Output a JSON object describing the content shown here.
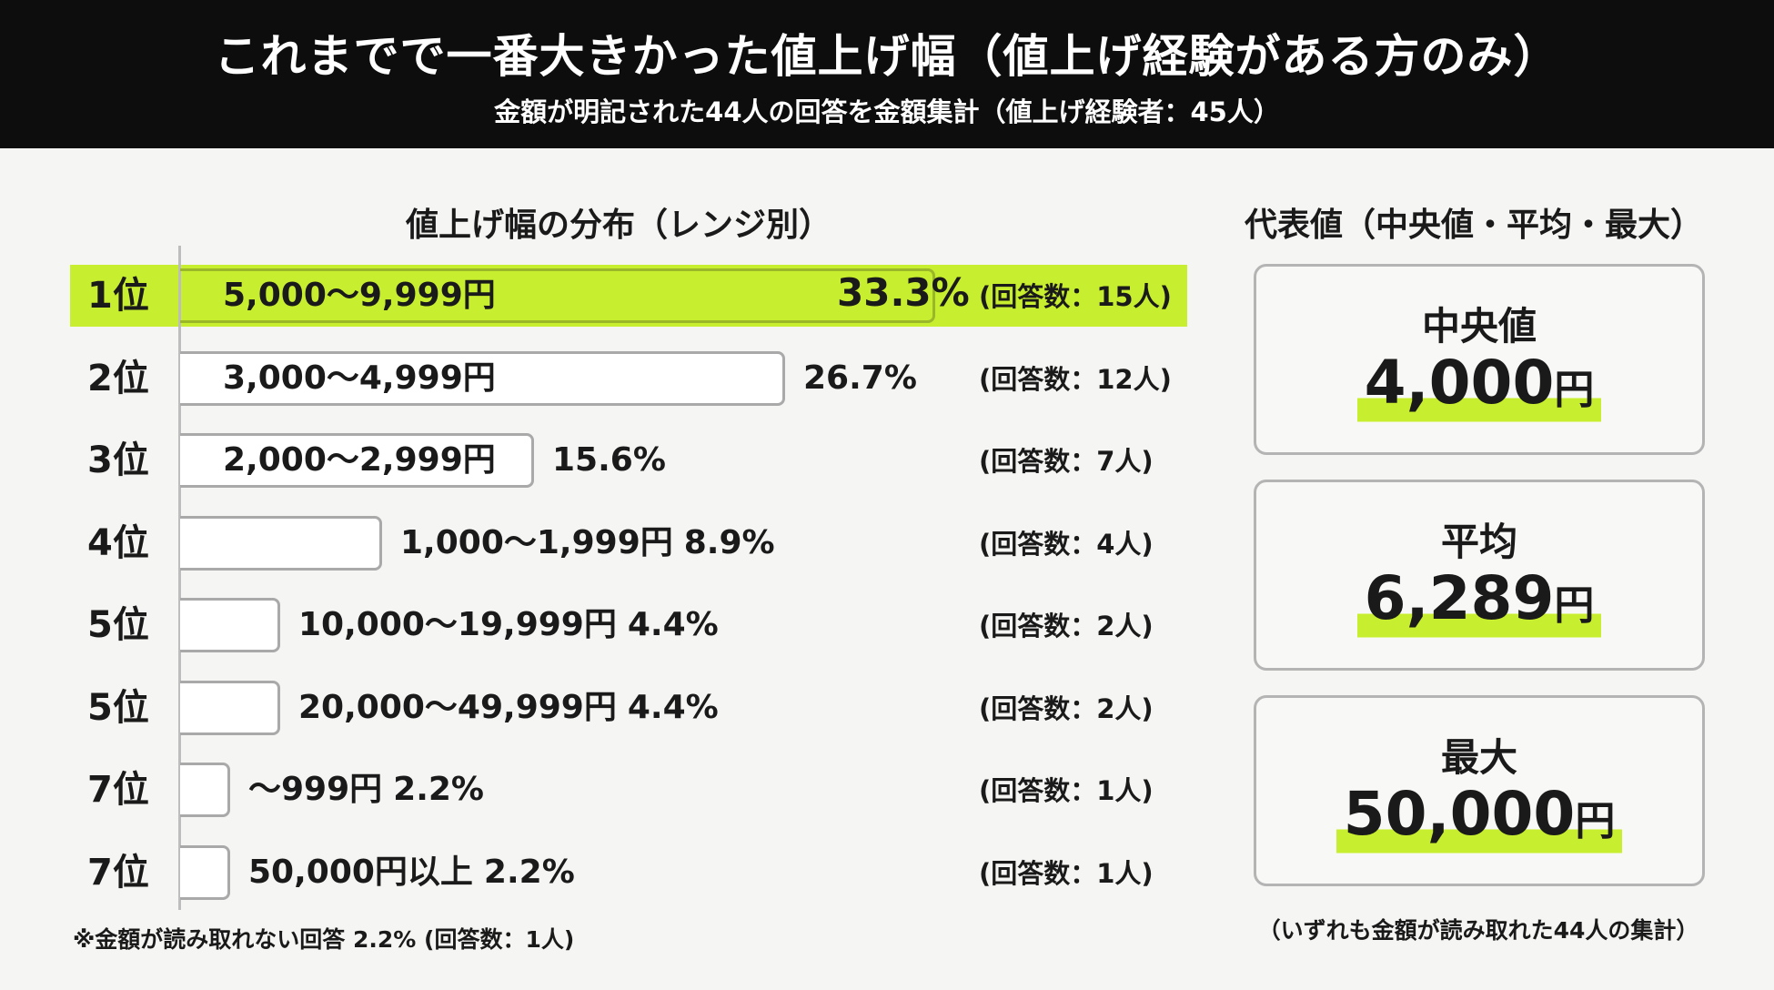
{
  "header": {
    "title": "これまでで一番大きかった値上げ幅（値上げ経験がある方のみ）",
    "subtitle": "金額が明記された44人の回答を金額集計（値上げ経験者：45人）"
  },
  "left_heading": "値上げ幅の分布（レンジ別）",
  "right_heading": "代表値（中央値・平均・最大）",
  "footnote": "※金額が読み取れない回答 2.2% (回答数：1人)",
  "right_footnote": "（いずれも金額が読み取れた44人の集計）",
  "stats": [
    {
      "label": "中央値",
      "value": "4,000",
      "unit": "円"
    },
    {
      "label": "平均",
      "value": "6,289",
      "unit": "円"
    },
    {
      "label": "最大",
      "value": "50,000",
      "unit": "円"
    }
  ],
  "colors": {
    "accent": "#c8ef2f",
    "header_bg": "#0d0d0d",
    "bar_border": "#a9a9a9"
  },
  "chart_data": {
    "type": "bar",
    "orientation": "horizontal",
    "title": "値上げ幅の分布（レンジ別）",
    "ranks": [
      "1位",
      "2位",
      "3位",
      "4位",
      "5位",
      "5位",
      "7位",
      "7位"
    ],
    "categories": [
      "5,000〜9,999円",
      "3,000〜4,999円",
      "2,000〜2,999円",
      "1,000〜1,999円",
      "10,000〜19,999円",
      "20,000〜49,999円",
      "〜999円",
      "50,000円以上"
    ],
    "values": [
      33.3,
      26.7,
      15.6,
      8.9,
      4.4,
      4.4,
      2.2,
      2.2
    ],
    "value_labels": [
      "33.3%",
      "26.7%",
      "15.6%",
      "8.9%",
      "4.4%",
      "4.4%",
      "2.2%",
      "2.2%"
    ],
    "counts": [
      "(回答数：15人)",
      "(回答数：12人)",
      "(回答数：7人)",
      "(回答数：4人)",
      "(回答数：2人)",
      "(回答数：2人)",
      "(回答数：1人)",
      "(回答数：1人)"
    ],
    "highlight_index": 0,
    "xlim": [
      0,
      33.3
    ]
  }
}
